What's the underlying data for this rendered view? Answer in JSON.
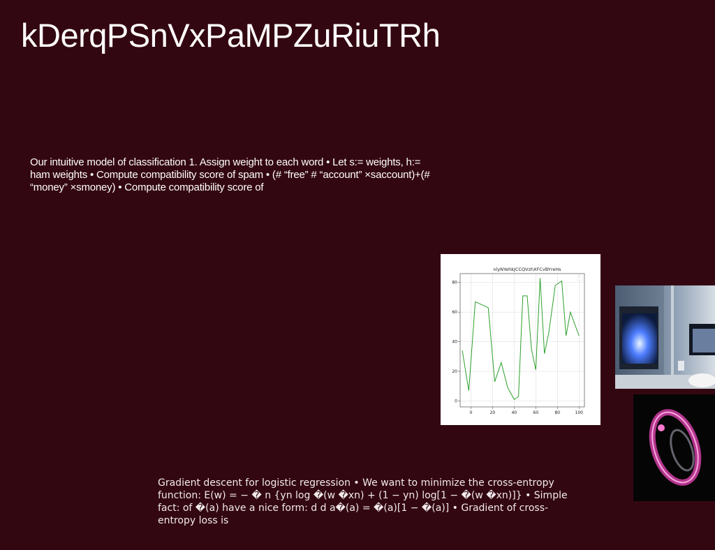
{
  "slide": {
    "title": "kDerqPSnVxPaMPZuRiuTRh",
    "body_text_1": "Our intuitive model of classification 1. Assign weight to each word • Let s:= weights, h:= ham weights • Compute compatibility score of spam • (# “free” # “account” ×saccount)+(# “money” ×smoney) • Compute compatibility score of",
    "body_text_2": "Gradient descent for logistic regression • We want to minimize the cross-entropy function: E(w) = − � n {yn log �(w �xn) + (1 − yn) log[1 − �(w �xn)]} • Simple fact: of �(a) have a nice form: d d a�(a) = �(a)[1 − �(a)] • Gradient of cross-entropy loss is"
  },
  "colors": {
    "background": "#330711",
    "line_series": "#2ca02c"
  },
  "images": {
    "fireplace": "photo of a room with a lit fireplace and wall-mounted screen",
    "ring": "photo of a glowing pink translucent ring on black"
  },
  "chart_data": {
    "type": "line",
    "title": "nlyNYehkJCCQVzhXFCvBYreHs",
    "xlabel": "",
    "ylabel": "",
    "xlim": [
      -10,
      105
    ],
    "ylim": [
      -4,
      86
    ],
    "xticks": [
      0,
      20,
      40,
      60,
      80,
      100
    ],
    "yticks": [
      0,
      20,
      40,
      60,
      80
    ],
    "grid": true,
    "x": [
      -8,
      -2,
      4,
      10,
      16,
      22,
      28,
      34,
      40,
      44,
      48,
      52,
      56,
      60,
      64,
      68,
      72,
      78,
      84,
      88,
      92,
      100
    ],
    "series": [
      {
        "name": "",
        "values": [
          34,
          7,
          67,
          65,
          63,
          13,
          26,
          9,
          1,
          3,
          71,
          71,
          35,
          21,
          83,
          32,
          46,
          78,
          81,
          44,
          60,
          44
        ]
      }
    ]
  }
}
